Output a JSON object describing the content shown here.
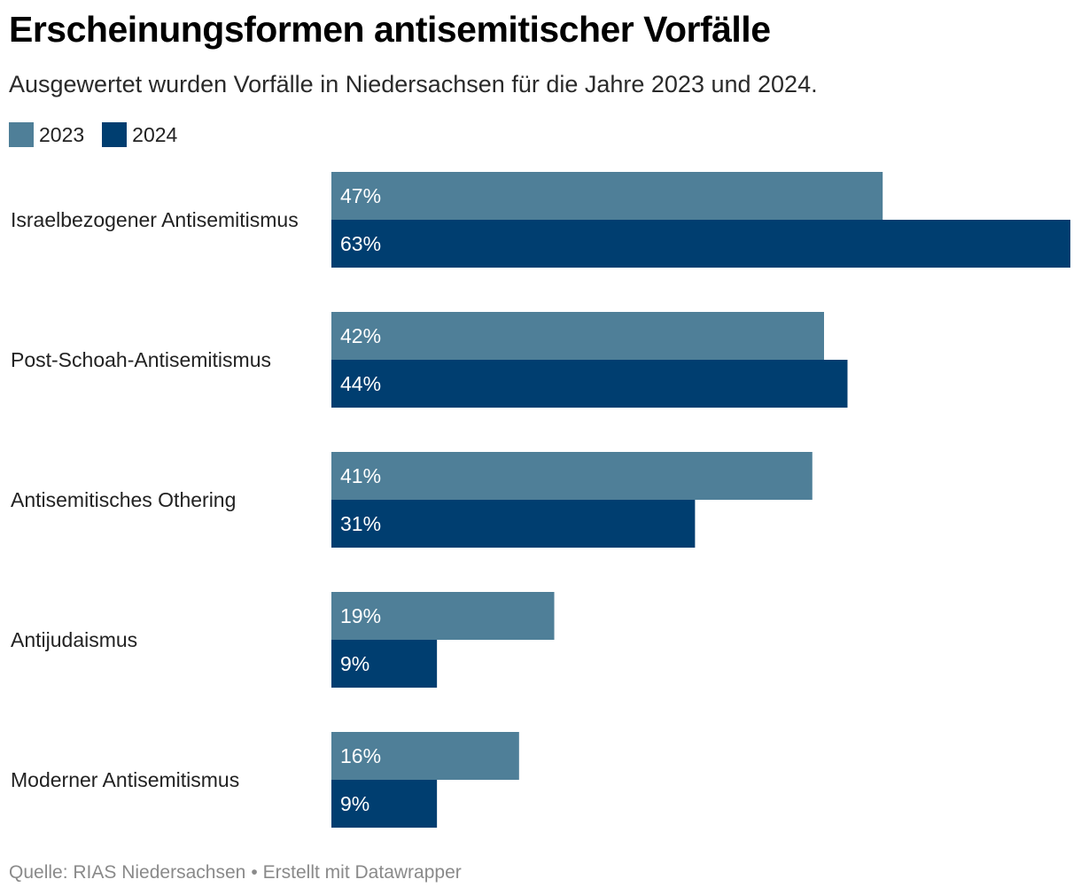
{
  "header": {
    "title": "Erscheinungsformen antisemitischer Vorfälle",
    "subtitle": "Ausgewertet wurden Vorfälle in Niedersachsen für die Jahre 2023 und 2024."
  },
  "colors": {
    "series_2023": "#4f7f98",
    "series_2024": "#003e70"
  },
  "legend": [
    {
      "label": "2023",
      "color": "#4f7f98"
    },
    {
      "label": "2024",
      "color": "#003e70"
    }
  ],
  "footer": {
    "source": "Quelle: RIAS Niedersachsen",
    "separator": "•",
    "credit": "Erstellt mit Datawrapper"
  },
  "chart_data": {
    "type": "bar",
    "orientation": "horizontal",
    "title": "Erscheinungsformen antisemitischer Vorfälle",
    "subtitle": "Ausgewertet wurden Vorfälle in Niedersachsen für die Jahre 2023 und 2024.",
    "categories": [
      "Israelbezogener Antisemitismus",
      "Post-Schoah-Antisemitismus",
      "Antisemitisches Othering",
      "Antijudaismus",
      "Moderner Antisemitismus"
    ],
    "series": [
      {
        "name": "2023",
        "values": [
          47,
          42,
          41,
          19,
          16
        ],
        "labels": [
          "47%",
          "42%",
          "41%",
          "19%",
          "16%"
        ]
      },
      {
        "name": "2024",
        "values": [
          63,
          44,
          31,
          9,
          9
        ],
        "labels": [
          "63%",
          "44%",
          "31%",
          "9%",
          "9%"
        ]
      }
    ],
    "unit": "%",
    "xlim": [
      0,
      63
    ],
    "grid": false,
    "legend_position": "top-left"
  }
}
